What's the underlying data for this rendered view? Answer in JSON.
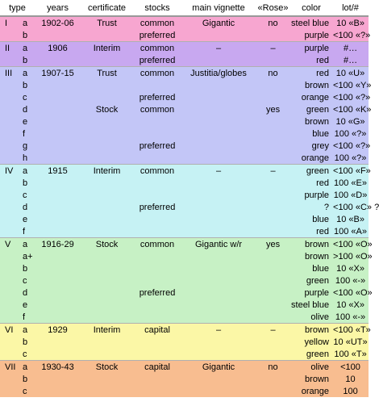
{
  "headers": [
    "type",
    "",
    "years",
    "certificate",
    "stocks",
    "main vignette",
    "«Rose»",
    "color",
    "lot/#"
  ],
  "groups": [
    {
      "id": "I",
      "color": "#f7a6d0",
      "rows": [
        [
          "I",
          "a",
          "1902-06",
          "Trust",
          "common",
          "Gigantic",
          "no",
          "steel blue",
          "10 «B»"
        ],
        [
          "",
          "b",
          "",
          "",
          "preferred",
          "",
          "",
          "purple",
          "<100 «?»"
        ]
      ]
    },
    {
      "id": "II",
      "color": "#c8a8f0",
      "rows": [
        [
          "II",
          "a",
          "1906",
          "Interim",
          "common",
          "–",
          "–",
          "purple",
          "#…"
        ],
        [
          "",
          "b",
          "",
          "",
          "preferred",
          "",
          "",
          "red",
          "#…"
        ]
      ]
    },
    {
      "id": "III",
      "color": "#c3c6f7",
      "rows": [
        [
          "III",
          "a",
          "1907-15",
          "Trust",
          "common",
          "Justitia/globes",
          "no",
          "red",
          "10 «U»"
        ],
        [
          "",
          "b",
          "",
          "",
          "",
          "",
          "",
          "brown",
          "<100 «Y»"
        ],
        [
          "",
          "c",
          "",
          "",
          "preferred",
          "",
          "",
          "orange",
          "<100 «?»"
        ],
        [
          "",
          "d",
          "",
          "Stock",
          "common",
          "",
          "yes",
          "green",
          "<100 «K»"
        ],
        [
          "",
          "e",
          "",
          "",
          "",
          "",
          "",
          "brown",
          "10 «G»"
        ],
        [
          "",
          "f",
          "",
          "",
          "",
          "",
          "",
          "blue",
          "100 «?»"
        ],
        [
          "",
          "g",
          "",
          "",
          "preferred",
          "",
          "",
          "grey",
          "<100 «?»"
        ],
        [
          "",
          "h",
          "",
          "",
          "",
          "",
          "",
          "orange",
          "100 «?»"
        ]
      ]
    },
    {
      "id": "IV",
      "color": "#c6f2f4",
      "rows": [
        [
          "IV",
          "a",
          "1915",
          "Interim",
          "common",
          "–",
          "–",
          "green",
          "<100 «F»"
        ],
        [
          "",
          "b",
          "",
          "",
          "",
          "",
          "",
          "red",
          "100 «E»"
        ],
        [
          "",
          "c",
          "",
          "",
          "",
          "",
          "",
          "purple",
          "100 «D»"
        ],
        [
          "",
          "d",
          "",
          "",
          "preferred",
          "",
          "",
          "?",
          "<100 «C» ?"
        ],
        [
          "",
          "e",
          "",
          "",
          "",
          "",
          "",
          "blue",
          "10 «B»"
        ],
        [
          "",
          "f",
          "",
          "",
          "",
          "",
          "",
          "red",
          "100 «A»"
        ]
      ]
    },
    {
      "id": "V",
      "color": "#c7f1c5",
      "rows": [
        [
          "V",
          "a",
          "1916-29",
          "Stock",
          "common",
          "Gigantic w/r",
          "yes",
          "brown",
          "<100 «O»"
        ],
        [
          "",
          "a+",
          "",
          "",
          "",
          "",
          "",
          "brown",
          ">100 «O»"
        ],
        [
          "",
          "b",
          "",
          "",
          "",
          "",
          "",
          "blue",
          "10 «X»"
        ],
        [
          "",
          "c",
          "",
          "",
          "",
          "",
          "",
          "green",
          "100 «-»"
        ],
        [
          "",
          "d",
          "",
          "",
          "preferred",
          "",
          "",
          "purple",
          "<100 «O»"
        ],
        [
          "",
          "e",
          "",
          "",
          "",
          "",
          "",
          "steel blue",
          "10 «X»"
        ],
        [
          "",
          "f",
          "",
          "",
          "",
          "",
          "",
          "olive",
          "100 «-»"
        ]
      ]
    },
    {
      "id": "VI",
      "color": "#fbf7a6",
      "rows": [
        [
          "VI",
          "a",
          "1929",
          "Interim",
          "capital",
          "–",
          "–",
          "brown",
          "<100 «T»"
        ],
        [
          "",
          "b",
          "",
          "",
          "",
          "",
          "",
          "yellow",
          "10 «UT»"
        ],
        [
          "",
          "c",
          "",
          "",
          "",
          "",
          "",
          "green",
          "100 «T»"
        ]
      ]
    },
    {
      "id": "VII",
      "color": "#f8bd90",
      "rows": [
        [
          "VII",
          "a",
          "1930-43",
          "Stock",
          "capital",
          "Gigantic",
          "no",
          "olive",
          "<100"
        ],
        [
          "",
          "b",
          "",
          "",
          "",
          "",
          "",
          "brown",
          "10"
        ],
        [
          "",
          "c",
          "",
          "",
          "",
          "",
          "",
          "orange",
          "100"
        ]
      ]
    }
  ]
}
